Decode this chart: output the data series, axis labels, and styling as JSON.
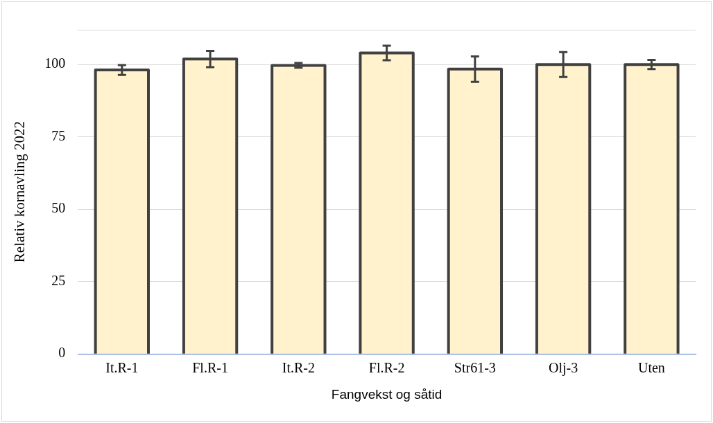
{
  "chart_data": {
    "type": "bar",
    "xlabel": "Fangvekst og såtid",
    "ylabel": "Relativ kornavling 2022",
    "categories": [
      "It.R-1",
      "Fl.R-1",
      "It.R-2",
      "Fl.R-2",
      "Str61-3",
      "Olj-3",
      "Uten"
    ],
    "series": [
      {
        "color": "#fff2cc",
        "values": [
          98.1,
          101.9,
          99.7,
          104,
          98.4,
          100,
          100
        ],
        "errors": [
          1.7,
          2.8,
          0.8,
          2.5,
          4.4,
          4.3,
          1.6
        ]
      }
    ],
    "ylim": [
      0,
      112
    ],
    "yticks": [
      0,
      25,
      50,
      75,
      100,
      {
        "value": 112,
        "label": null
      }
    ],
    "grid": "y",
    "legend": false
  }
}
